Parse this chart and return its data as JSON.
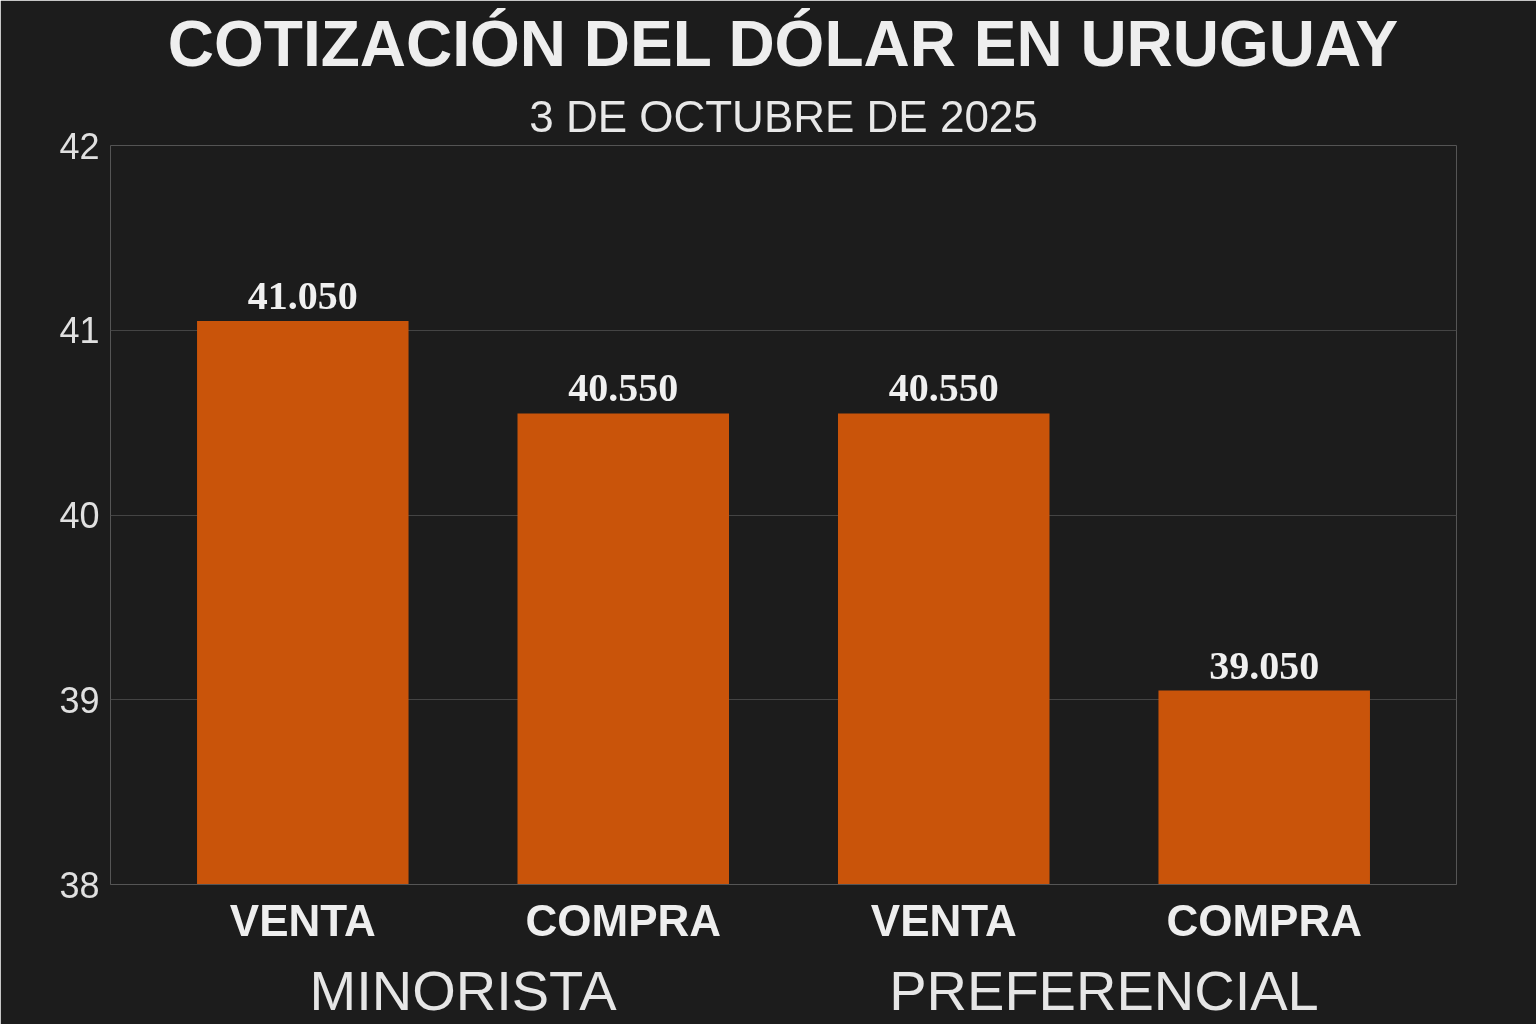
{
  "chart_data": {
    "type": "bar",
    "title": "COTIZACIÓN DEL DÓLAR EN URUGUAY",
    "subtitle": "3 DE OCTUBRE DE 2025",
    "categories": [
      "VENTA",
      "COMPRA",
      "VENTA",
      "COMPRA"
    ],
    "values": [
      41.05,
      40.55,
      40.55,
      39.05
    ],
    "value_labels": [
      "41.050",
      "40.550",
      "40.550",
      "39.050"
    ],
    "color": "#c9540a",
    "ylim": [
      38,
      42
    ],
    "yticks": [
      38,
      39,
      40,
      41,
      42
    ],
    "grid": "y",
    "annotations": [
      "MINORISTA",
      "PREFERENCIAL"
    ]
  }
}
